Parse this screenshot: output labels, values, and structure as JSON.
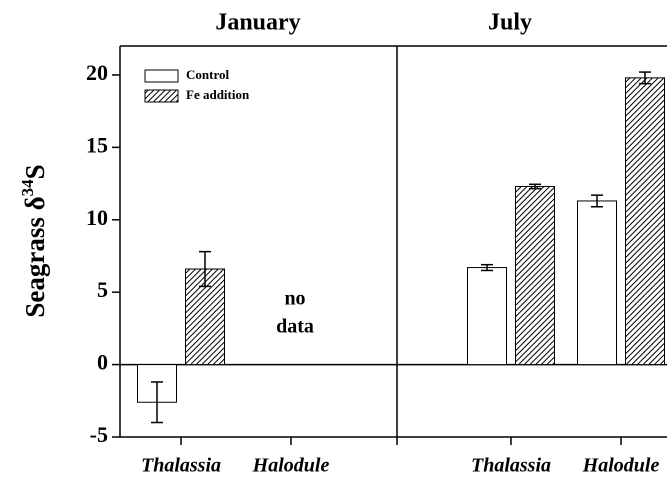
{
  "chart_data": [
    {
      "type": "bar",
      "title": "January",
      "ylabel": [
        "Seagrass δ",
        "34",
        "S"
      ],
      "ylim": [
        -5,
        22
      ],
      "yticks": [
        -5,
        0,
        5,
        10,
        15,
        20
      ],
      "categories": [
        "Thalassia",
        "Halodule"
      ],
      "series": [
        {
          "name": "Control",
          "color": "#ffffff",
          "values": [
            -2.6,
            null
          ],
          "errors": [
            1.4,
            null
          ]
        },
        {
          "name": "Fe addition",
          "color": "hatch",
          "values": [
            6.6,
            null
          ],
          "errors": [
            1.2,
            null
          ]
        }
      ],
      "annotation": [
        "no",
        "data"
      ],
      "legend": "upper left"
    },
    {
      "type": "bar",
      "title": "July",
      "categories": [
        "Thalassia",
        "Halodule"
      ],
      "series": [
        {
          "color": "#ffffff",
          "values": [
            6.7,
            11.3
          ],
          "errors": [
            0.2,
            0.4
          ]
        },
        {
          "color": "hatch",
          "values": [
            12.3,
            19.8
          ],
          "errors": [
            0.15,
            0.4
          ]
        }
      ]
    }
  ]
}
